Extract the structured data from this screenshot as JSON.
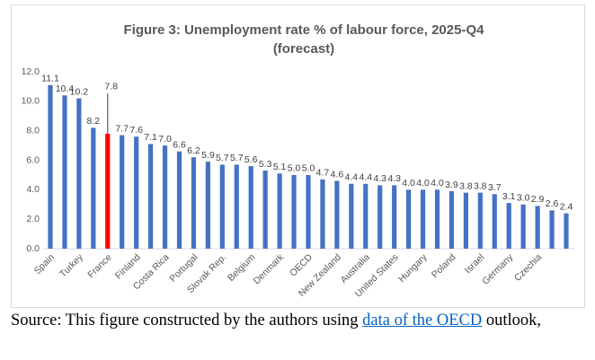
{
  "chart_data": {
    "type": "bar",
    "title": "Figure 3: Unemployment rate % of labour force, 2025-Q4",
    "subtitle": "(forecast)",
    "categories": [
      "Spain",
      null,
      "Turkey",
      null,
      "France",
      null,
      "Finland",
      null,
      "Costa Rica",
      null,
      "Portugal",
      null,
      "Slovak Rep.",
      null,
      "Belgium",
      null,
      "Denmark",
      null,
      "OECD",
      null,
      "New Zealand",
      null,
      "Australia",
      null,
      "United States",
      null,
      "Hungary",
      null,
      "Poland",
      null,
      "Israel",
      null,
      "Germany",
      null,
      "Czechia",
      null,
      null
    ],
    "values": [
      11.1,
      10.4,
      10.2,
      8.2,
      7.8,
      7.7,
      7.6,
      7.1,
      7.0,
      6.6,
      6.2,
      5.9,
      5.7,
      5.7,
      5.6,
      5.3,
      5.1,
      5.0,
      5.0,
      4.7,
      4.6,
      4.4,
      4.4,
      4.3,
      4.3,
      4.0,
      4.0,
      4.0,
      3.9,
      3.8,
      3.8,
      3.7,
      3.1,
      3.0,
      2.9,
      2.6,
      2.4
    ],
    "value_labels": [
      "11.1",
      "10.4",
      "10.2",
      "8.2",
      "7.8",
      "7.7",
      "7.6",
      "7.1",
      "7.0",
      "6.6",
      "6.2",
      "5.9",
      "5.7",
      "5.7",
      "5.6",
      "5.3",
      "5.1",
      "5.0",
      "5.0",
      "4.7",
      "4.6",
      "4.4",
      "4.4",
      "4.3",
      "4.3",
      "4.0",
      "4.0",
      "4.0",
      "3.9",
      "3.8",
      "3.8",
      "3.7",
      "3.1",
      "3.0",
      "2.9",
      "2.6",
      "2.4"
    ],
    "colors": [
      "#4472c4",
      "#4472c4",
      "#4472c4",
      "#4472c4",
      "#ff0000",
      "#4472c4",
      "#4472c4",
      "#4472c4",
      "#4472c4",
      "#4472c4",
      "#4472c4",
      "#4472c4",
      "#4472c4",
      "#4472c4",
      "#4472c4",
      "#4472c4",
      "#4472c4",
      "#4472c4",
      "#4472c4",
      "#4472c4",
      "#4472c4",
      "#4472c4",
      "#4472c4",
      "#4472c4",
      "#4472c4",
      "#4472c4",
      "#4472c4",
      "#4472c4",
      "#4472c4",
      "#4472c4",
      "#4472c4",
      "#4472c4",
      "#4472c4",
      "#4472c4",
      "#4472c4",
      "#4472c4",
      "#4472c4"
    ],
    "ylim": [
      0,
      12
    ],
    "yticks": [
      {
        "value": 0,
        "label": "0.0"
      },
      {
        "value": 2,
        "label": "2.0"
      },
      {
        "value": 4,
        "label": "4.0"
      },
      {
        "value": 6,
        "label": "6.0"
      },
      {
        "value": 8,
        "label": "8.0"
      },
      {
        "value": 10,
        "label": "10.0"
      },
      {
        "value": 12,
        "label": "12.0"
      }
    ],
    "grid": false
  },
  "source": {
    "text": "Source: This figure constructed by the authors using ",
    "link": "data of the OECD",
    "tail": " outlook,"
  }
}
